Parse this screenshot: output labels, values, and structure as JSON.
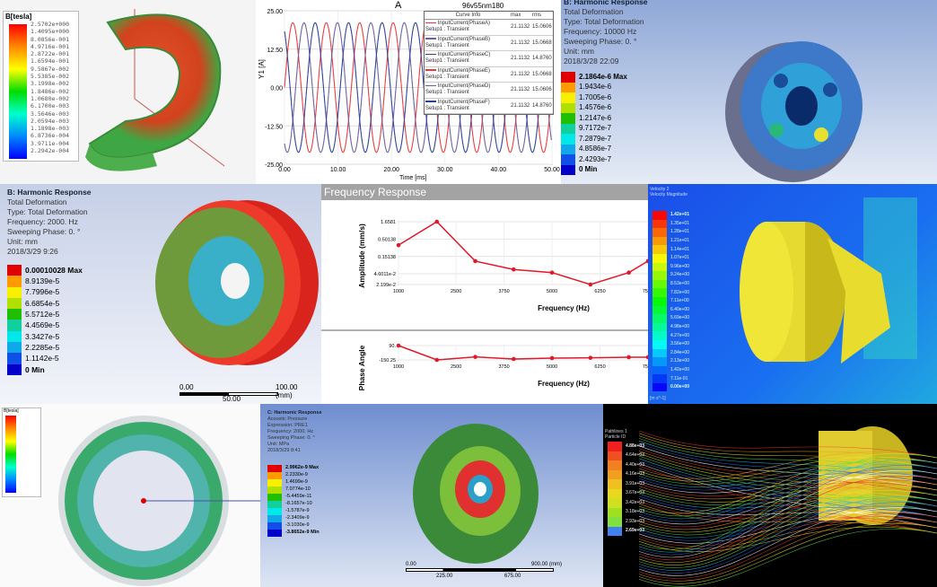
{
  "p1": {
    "title": "B[tesla]",
    "values": [
      "2.5702e+000",
      "1.4095e+000",
      "8.0856e-001",
      "4.9716e-001",
      "2.8722e-001",
      "1.6594e-001",
      "9.5867e-002",
      "5.5385e-002",
      "3.1998e-002",
      "1.8486e-002",
      "1.0680e-002",
      "6.1700e-003",
      "3.5646e-003",
      "2.0594e-003",
      "1.1898e-003",
      "6.8736e-004",
      "3.9711e-004",
      "2.2942e-004"
    ]
  },
  "p2": {
    "title": "A",
    "design": "96v55nm180",
    "ylabel": "Y1 [A]",
    "xlabel": "Time [ms]",
    "legend_headers": [
      "Curve Info",
      "max",
      "rms"
    ],
    "curves": [
      {
        "name": "InputCurrent(PhaseA)",
        "setup": "Setup1 : Transient",
        "max": "21.1132",
        "rms": "15.0606",
        "color": "#e8393d"
      },
      {
        "name": "InputCurrent(PhaseB)",
        "setup": "Setup1 : Transient",
        "max": "21.1132",
        "rms": "15.0668",
        "color": "#6a5fa0"
      },
      {
        "name": "InputCurrent(PhaseC)",
        "setup": "Setup1 : Transient",
        "max": "21.1132",
        "rms": "14.8760",
        "color": "#2d3f9c"
      },
      {
        "name": "InputCurrent(PhaseE)",
        "setup": "Setup1 : Transient",
        "max": "21.1132",
        "rms": "15.0668",
        "color": "#e8393d"
      },
      {
        "name": "InputCurrent(PhaseD)",
        "setup": "Setup1 : Transient",
        "max": "21.1132",
        "rms": "15.0606",
        "color": "#6a5fa0"
      },
      {
        "name": "InputCurrent(PhaseF)",
        "setup": "Setup1 : Transient",
        "max": "21.1132",
        "rms": "14.8760",
        "color": "#2d3f9c"
      }
    ],
    "yticks": [
      "25.00",
      "12.50",
      "0.00",
      "-12.50",
      "-25.00"
    ],
    "xticks": [
      "0.00",
      "10.00",
      "20.00",
      "30.00",
      "40.00",
      "50.00"
    ]
  },
  "p3": {
    "info": [
      "B: Harmonic Response",
      "Total Deformation",
      "Type: Total Deformation",
      "Frequency: 10000 Hz",
      "Sweeping Phase: 0. °",
      "Unit: mm",
      "2018/3/28 22:09"
    ],
    "values": [
      "2.1864e-6 Max",
      "1.9434e-6",
      "1.7005e-6",
      "1.4576e-6",
      "1.2147e-6",
      "9.7172e-7",
      "7.2879e-7",
      "4.8586e-7",
      "2.4293e-7",
      "0 Min"
    ]
  },
  "p4": {
    "info": [
      "B: Harmonic Response",
      "Total Deformation",
      "Type: Total Deformation",
      "Frequency: 2000. Hz",
      "Sweeping Phase: 0. °",
      "Unit: mm",
      "2018/3/29 9:26"
    ],
    "values": [
      "0.00010028 Max",
      "8.9139e-5",
      "7.7996e-5",
      "6.6854e-5",
      "5.5712e-5",
      "4.4569e-5",
      "3.3427e-5",
      "2.2285e-5",
      "1.1142e-5",
      "0 Min"
    ],
    "scale": {
      "left": "0.00",
      "right": "100.00 (mm)",
      "mid": "50.00"
    }
  },
  "p5": {
    "header": "Frequency Response",
    "chart_data": [
      {
        "type": "line",
        "ylabel": "Amplitude (mm/s)",
        "xlabel": "Frequency (Hz)",
        "yscale": "log",
        "yticks": [
          "2.199e-2",
          "4.6011e-2",
          "0.15138",
          "0.50138",
          "1.6581"
        ],
        "ytick_values": [
          0.02199,
          0.046011,
          0.15138,
          0.50138,
          1.6581
        ],
        "xticks": [
          "1000",
          "2500",
          "3750",
          "5000",
          "6250",
          "7500"
        ],
        "xlim": [
          1000,
          7500
        ],
        "x": [
          1000,
          2000,
          3000,
          4000,
          5000,
          6000,
          7000,
          7500
        ],
        "y": [
          0.33,
          1.6581,
          0.11,
          0.062,
          0.05,
          0.02199,
          0.05,
          0.11
        ],
        "color": "#e0182a"
      },
      {
        "type": "line",
        "ylabel": "Phase Angle",
        "xlabel": "Frequency (Hz)",
        "yticks": [
          "90.",
          "-150.25"
        ],
        "ytick_values": [
          90,
          -150.25
        ],
        "xticks": [
          "1000",
          "2500",
          "3750",
          "5000",
          "6250",
          "7500"
        ],
        "xlim": [
          1000,
          7500
        ],
        "x": [
          1000,
          2000,
          3000,
          4000,
          5000,
          6000,
          7000,
          7500
        ],
        "y": [
          90,
          -150.25,
          -100,
          -135,
          -120,
          -115,
          -105,
          -105
        ],
        "color": "#e0182a"
      }
    ]
  },
  "p6": {
    "title": "Velocity 2",
    "subtitle": "Velocity Magnitude",
    "values": [
      "1.42e+01",
      "1.35e+01",
      "1.28e+01",
      "1.21e+01",
      "1.14e+01",
      "1.07e+01",
      "9.96e+00",
      "9.24e+00",
      "8.53e+00",
      "7.82e+00",
      "7.11e+00",
      "6.40e+00",
      "5.69e+00",
      "4.98e+00",
      "4.27e+00",
      "3.56e+00",
      "2.84e+00",
      "2.13e+00",
      "1.42e+00",
      "7.11e-01",
      "0.00e+00"
    ],
    "unit": "[m s^-1]"
  },
  "p7": {
    "title": "B[tesla]"
  },
  "p8": {
    "info": [
      "C: Harmonic Response",
      "Acoustic Pressure",
      "Expression: PRE1",
      "Frequency: 2000. Hz",
      "Sweeping Phase: 0. °",
      "Unit: MPa",
      "2018/3/29 8:41"
    ],
    "values": [
      "2.9962e-9 Max",
      "2.2330e-9",
      "1.4699e-9",
      "7.0774e-10",
      "-5.4459e-11",
      "-8.1657e-10",
      "-1.5787e-9",
      "-2.3409e-9",
      "-3.1030e-9",
      "-3.8652e-9 Min"
    ],
    "scale": {
      "left": "0.00",
      "right": "900.00 (mm)",
      "a": "225.00",
      "b": "675.00"
    }
  },
  "p9": {
    "title": "Pathlines 1",
    "subtitle": "Particle ID",
    "values": [
      "4.88e+03",
      "4.64e+03",
      "4.40e+03",
      "4.16e+03",
      "3.91e+03",
      "3.67e+03",
      "3.42e+03",
      "3.18e+03",
      "2.93e+03",
      "2.69e+03"
    ]
  }
}
